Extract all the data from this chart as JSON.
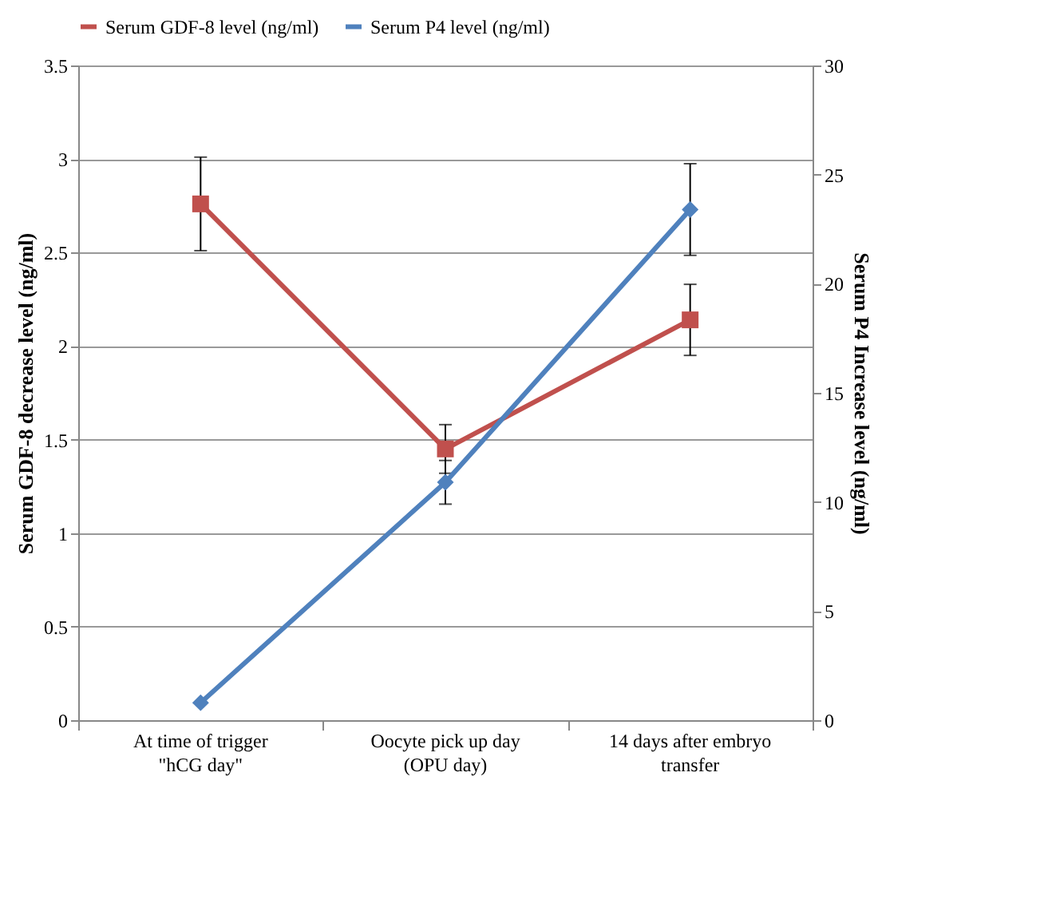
{
  "chart_data": {
    "type": "line",
    "categories": [
      "At time of trigger \"hCG day\"",
      "Oocyte pick  up day (OPU day)",
      "14 days after embryo transfer"
    ],
    "ylabel": "Serum GDF-8 decrease level (ng/ml)",
    "y2label": "Serum P4 Increase level (ng/ml)",
    "ylim": [
      0,
      3.5
    ],
    "yticks": [
      0,
      0.5,
      1,
      1.5,
      2,
      2.5,
      3,
      3.5
    ],
    "y2lim": [
      0,
      30
    ],
    "y2ticks": [
      0,
      5,
      10,
      15,
      20,
      25,
      30
    ],
    "grid": "y",
    "legend": "top",
    "series": [
      {
        "name": "Serum GDF-8 level (ng/ml)",
        "color": "#c0504d",
        "marker": "square",
        "values": [
          2.76,
          1.45,
          2.14
        ],
        "errors": [
          0.25,
          0.13,
          0.19
        ]
      },
      {
        "name": "Serum P4 level (ng/ml)",
        "color": "#4f81bd",
        "marker": "diamond",
        "axis": "y2",
        "values": [
          0.8,
          10.9,
          23.4
        ],
        "errors": [
          null,
          1.0,
          2.1
        ]
      }
    ]
  }
}
